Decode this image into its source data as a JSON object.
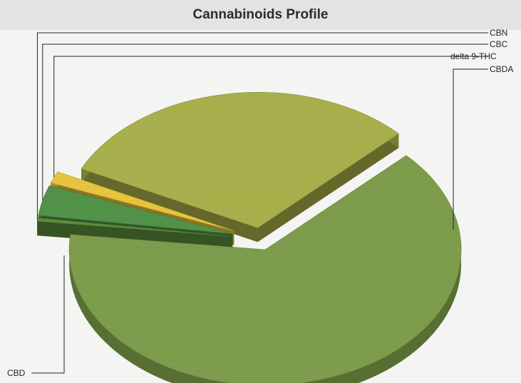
{
  "chart_data": {
    "type": "pie",
    "title": "Cannabinoids Profile",
    "three_d": true,
    "exploded": true,
    "categories": [
      "CBD",
      "CBN",
      "CBC",
      "delta 9-THC",
      "CBDA"
    ],
    "values": [
      64.0,
      0.4,
      3.6,
      1.4,
      30.6
    ],
    "unit": "%",
    "colors": {
      "CBD": "#7a9a48",
      "CBN": "#5a8a3a",
      "CBC": "#4e8f45",
      "delta 9-THC": "#e6c23a",
      "CBDA": "#a6ad48"
    },
    "labels_style": "leader-lines"
  }
}
